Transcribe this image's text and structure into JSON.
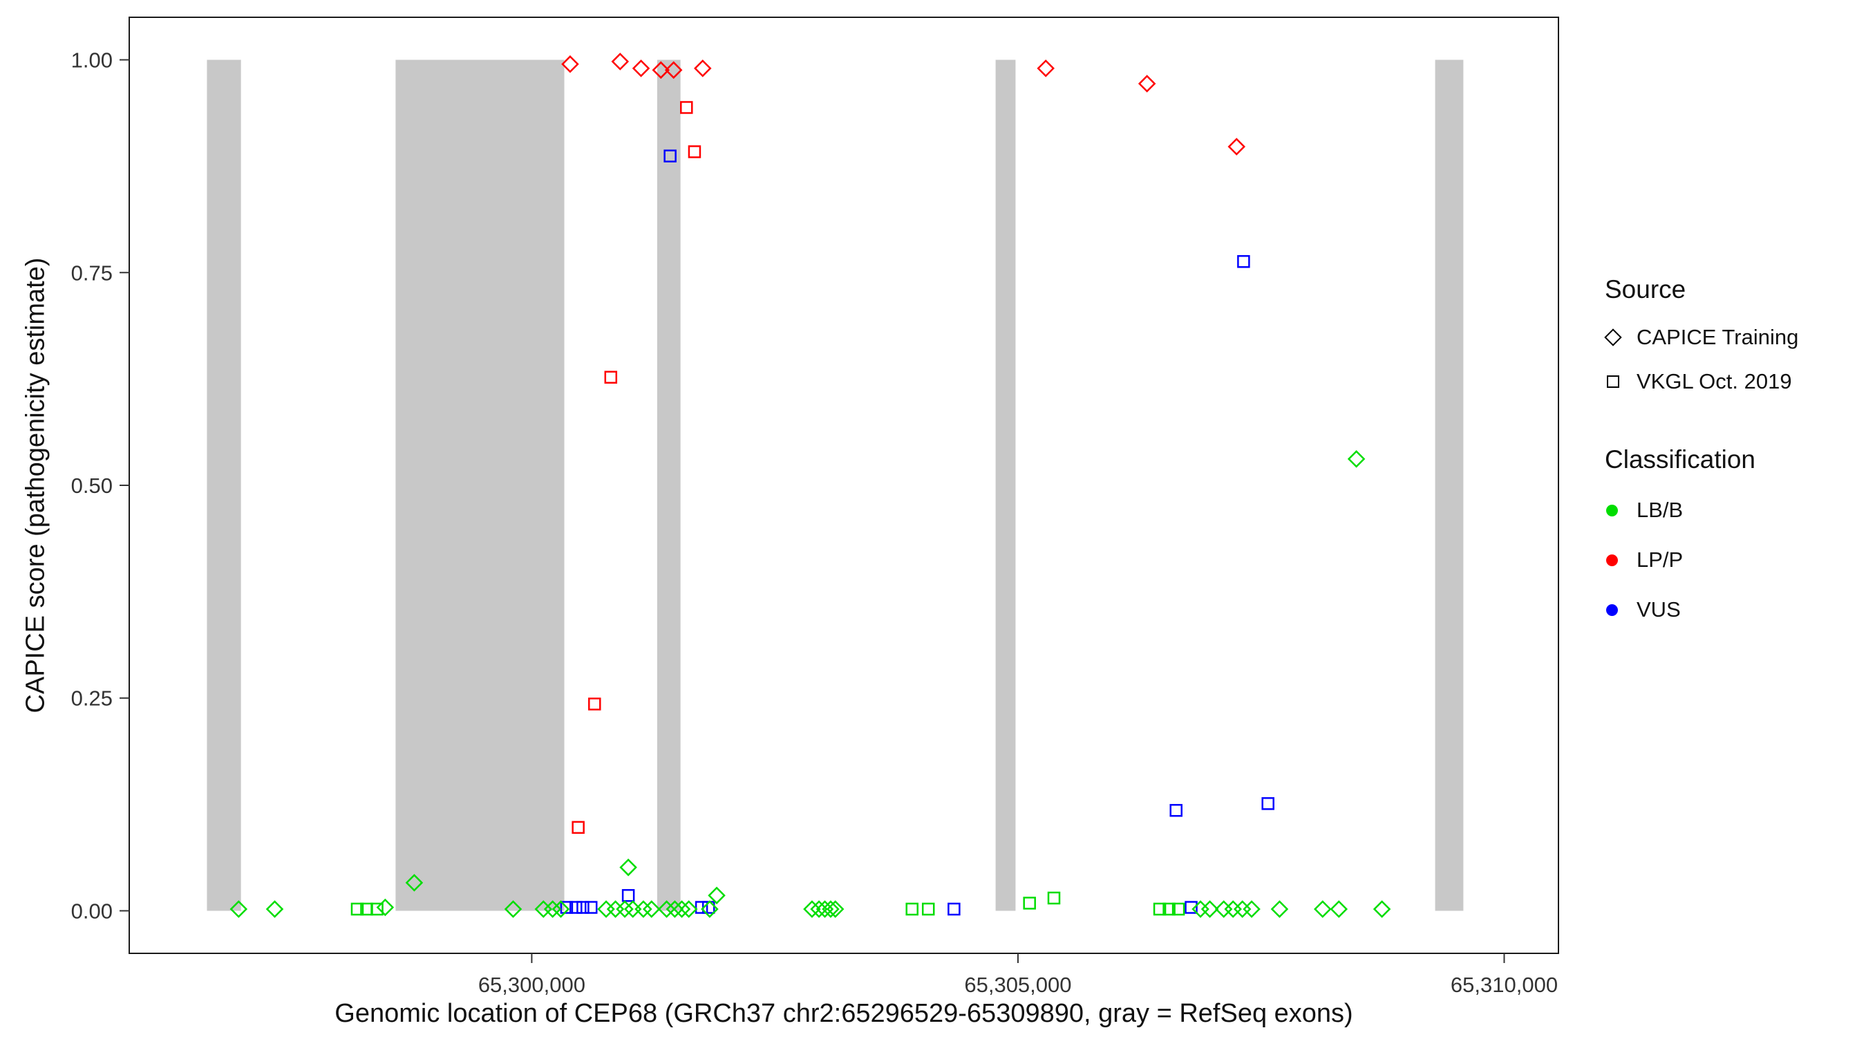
{
  "chart_data": {
    "type": "scatter",
    "title": "",
    "xlabel": "Genomic location of CEP68 (GRCh37 chr2:65296529-65309890, gray = RefSeq exons)",
    "ylabel": "CAPICE score (pathogenicity estimate)",
    "xlim": [
      65295861,
      65310558
    ],
    "ylim": [
      -0.05,
      1.05
    ],
    "grid": "off",
    "legend_position": "right",
    "x_ticks": [
      {
        "value": 65300000,
        "label": "65,300,000"
      },
      {
        "value": 65305000,
        "label": "65,305,000"
      },
      {
        "value": 65310000,
        "label": "65,310,000"
      }
    ],
    "y_ticks": [
      {
        "value": 0.0,
        "label": "0.00"
      },
      {
        "value": 0.25,
        "label": "0.25"
      },
      {
        "value": 0.5,
        "label": "0.50"
      },
      {
        "value": 0.75,
        "label": "0.75"
      },
      {
        "value": 1.0,
        "label": "1.00"
      }
    ],
    "exon_color": "#C8C8C8",
    "exon_y_range": [
      0,
      1
    ],
    "exons": [
      [
        65296660,
        65297010
      ],
      [
        65298600,
        65300335
      ],
      [
        65301290,
        65301530
      ],
      [
        65304770,
        65304975
      ],
      [
        65309290,
        65309580
      ]
    ],
    "shape_legend": {
      "T": "CAPICE Training (diamond)",
      "V": "VKGL Oct. 2019 (square)"
    },
    "class_colors": {
      "LB/B": "#00DD00",
      "LP/P": "#FF0000",
      "VUS": "#0000FF"
    },
    "point_format": [
      "x_genomic_position",
      "capice_score",
      "source(T=CAPICE Training diamond, V=VKGL Oct. 2019 square)",
      "classification"
    ],
    "points": [
      [
        65300395,
        0.995,
        "T",
        "LP/P"
      ],
      [
        65300909,
        0.998,
        "T",
        "LP/P"
      ],
      [
        65301124,
        0.99,
        "T",
        "LP/P"
      ],
      [
        65301328,
        0.988,
        "T",
        "LP/P"
      ],
      [
        65301459,
        0.988,
        "T",
        "LP/P"
      ],
      [
        65301758,
        0.99,
        "T",
        "LP/P"
      ],
      [
        65305286,
        0.99,
        "T",
        "LP/P"
      ],
      [
        65306327,
        0.972,
        "T",
        "LP/P"
      ],
      [
        65307248,
        0.898,
        "T",
        "LP/P"
      ],
      [
        65301591,
        0.944,
        "V",
        "LP/P"
      ],
      [
        65301674,
        0.892,
        "V",
        "LP/P"
      ],
      [
        65300813,
        0.627,
        "V",
        "LP/P"
      ],
      [
        65300646,
        0.243,
        "V",
        "LP/P"
      ],
      [
        65300478,
        0.098,
        "V",
        "LP/P"
      ],
      [
        65301423,
        0.887,
        "V",
        "VUS"
      ],
      [
        65307320,
        0.763,
        "V",
        "VUS"
      ],
      [
        65306626,
        0.118,
        "V",
        "VUS"
      ],
      [
        65307571,
        0.126,
        "V",
        "VUS"
      ],
      [
        65300993,
        0.018,
        "V",
        "VUS"
      ],
      [
        65300359,
        0.004,
        "V",
        "VUS"
      ],
      [
        65300454,
        0.004,
        "V",
        "VUS"
      ],
      [
        65300526,
        0.004,
        "V",
        "VUS"
      ],
      [
        65300610,
        0.004,
        "V",
        "VUS"
      ],
      [
        65301746,
        0.004,
        "V",
        "VUS"
      ],
      [
        65301818,
        0.004,
        "V",
        "VUS"
      ],
      [
        65304342,
        0.002,
        "V",
        "VUS"
      ],
      [
        65306781,
        0.004,
        "V",
        "VUS"
      ],
      [
        65308480,
        0.531,
        "T",
        "LB/B"
      ],
      [
        65296986,
        0.002,
        "T",
        "LB/B"
      ],
      [
        65297357,
        0.002,
        "T",
        "LB/B"
      ],
      [
        65298493,
        0.004,
        "T",
        "LB/B"
      ],
      [
        65298792,
        0.033,
        "T",
        "LB/B"
      ],
      [
        65299809,
        0.002,
        "T",
        "LB/B"
      ],
      [
        65300120,
        0.002,
        "T",
        "LB/B"
      ],
      [
        65300215,
        0.002,
        "T",
        "LB/B"
      ],
      [
        65300299,
        0.002,
        "T",
        "LB/B"
      ],
      [
        65300765,
        0.002,
        "T",
        "LB/B"
      ],
      [
        65300861,
        0.002,
        "T",
        "LB/B"
      ],
      [
        65300957,
        0.002,
        "T",
        "LB/B"
      ],
      [
        65300993,
        0.051,
        "T",
        "LB/B"
      ],
      [
        65301040,
        0.002,
        "T",
        "LB/B"
      ],
      [
        65301148,
        0.002,
        "T",
        "LB/B"
      ],
      [
        65301232,
        0.002,
        "T",
        "LB/B"
      ],
      [
        65301387,
        0.002,
        "T",
        "LB/B"
      ],
      [
        65301471,
        0.002,
        "T",
        "LB/B"
      ],
      [
        65301543,
        0.002,
        "T",
        "LB/B"
      ],
      [
        65301615,
        0.002,
        "T",
        "LB/B"
      ],
      [
        65301830,
        0.002,
        "T",
        "LB/B"
      ],
      [
        65301902,
        0.018,
        "T",
        "LB/B"
      ],
      [
        65302882,
        0.002,
        "T",
        "LB/B"
      ],
      [
        65302954,
        0.002,
        "T",
        "LB/B"
      ],
      [
        65303014,
        0.002,
        "T",
        "LB/B"
      ],
      [
        65303074,
        0.002,
        "T",
        "LB/B"
      ],
      [
        65303122,
        0.002,
        "T",
        "LB/B"
      ],
      [
        65306877,
        0.002,
        "T",
        "LB/B"
      ],
      [
        65306973,
        0.002,
        "T",
        "LB/B"
      ],
      [
        65307116,
        0.002,
        "T",
        "LB/B"
      ],
      [
        65307212,
        0.002,
        "T",
        "LB/B"
      ],
      [
        65307308,
        0.002,
        "T",
        "LB/B"
      ],
      [
        65307403,
        0.002,
        "T",
        "LB/B"
      ],
      [
        65307690,
        0.002,
        "T",
        "LB/B"
      ],
      [
        65308133,
        0.002,
        "T",
        "LB/B"
      ],
      [
        65308300,
        0.002,
        "T",
        "LB/B"
      ],
      [
        65308743,
        0.002,
        "T",
        "LB/B"
      ],
      [
        65298206,
        0.002,
        "V",
        "LB/B"
      ],
      [
        65298302,
        0.002,
        "V",
        "LB/B"
      ],
      [
        65298409,
        0.002,
        "V",
        "LB/B"
      ],
      [
        65303911,
        0.002,
        "V",
        "LB/B"
      ],
      [
        65304078,
        0.002,
        "V",
        "LB/B"
      ],
      [
        65305119,
        0.009,
        "V",
        "LB/B"
      ],
      [
        65305370,
        0.015,
        "V",
        "LB/B"
      ],
      [
        65306458,
        0.002,
        "V",
        "LB/B"
      ],
      [
        65306554,
        0.002,
        "V",
        "LB/B"
      ],
      [
        65306650,
        0.002,
        "V",
        "LB/B"
      ]
    ]
  },
  "legend": {
    "source": {
      "title": "Source",
      "items": [
        {
          "label": "CAPICE Training",
          "shape": "diamond"
        },
        {
          "label": "VKGL Oct. 2019",
          "shape": "square"
        }
      ]
    },
    "classification": {
      "title": "Classification",
      "items": [
        {
          "label": "LB/B",
          "color": "#00DD00"
        },
        {
          "label": "LP/P",
          "color": "#FF0000"
        },
        {
          "label": "VUS",
          "color": "#0000FF"
        }
      ]
    }
  }
}
